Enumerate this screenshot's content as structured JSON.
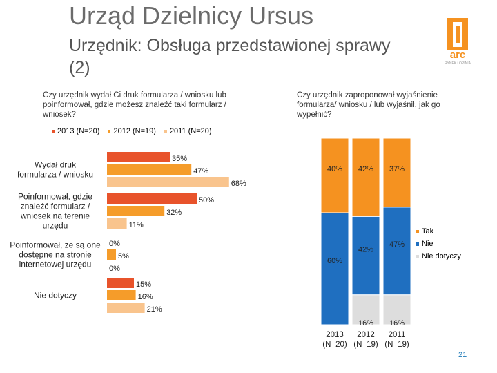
{
  "header": {
    "title": "Urząd Dzielnicy Ursus",
    "subtitle": "Urzędnik: Obsługa przedstawionej sprawy (2)",
    "logo_text": "arc",
    "logo_subtext": "RYNEK i OPINIA"
  },
  "page_number": "21",
  "colors": {
    "y2013": "#e8532b",
    "y2012": "#f59c2a",
    "y2011": "#f9c48d",
    "tak": "#f59220",
    "nie": "#1f6fc0",
    "nie_dotyczy": "#dddddd"
  },
  "chart_data": [
    {
      "type": "bar",
      "orientation": "horizontal",
      "title": "Czy urzędnik wydał Ci druk formularza / wniosku lub poinformował, gdzie możesz znaleźć taki formularz / wniosek?",
      "legend": [
        "2013 (N=20)",
        "2012 (N=19)",
        "2011 (N=20)"
      ],
      "legend_position": "top",
      "categories": [
        "Wydał druk formularza / wniosku",
        "Poinformował, gdzie znaleźć formularz / wniosek na terenie urzędu",
        "Poinformował, że są one dostępne na stronie internetowej urzędu",
        "Nie dotyczy"
      ],
      "series": [
        {
          "name": "2013 (N=20)",
          "values": [
            35,
            50,
            0,
            15
          ]
        },
        {
          "name": "2012 (N=19)",
          "values": [
            47,
            32,
            5,
            16
          ]
        },
        {
          "name": "2011 (N=20)",
          "values": [
            68,
            11,
            0,
            21
          ]
        }
      ],
      "unit": "%"
    },
    {
      "type": "bar",
      "stacked": true,
      "title": "Czy urzędnik zaproponował wyjaśnienie formularza/ wniosku / lub wyjaśnił, jak go wypełnić?",
      "categories": [
        "2013 (N=20)",
        "2012 (N=19)",
        "2011 (N=19)"
      ],
      "category_lines": [
        [
          "2013",
          "(N=20)"
        ],
        [
          "2012",
          "(N=19)"
        ],
        [
          "2011",
          "(N=19)"
        ]
      ],
      "legend": [
        "Tak",
        "Nie",
        "Nie dotyczy"
      ],
      "legend_position": "right",
      "series": [
        {
          "name": "Tak",
          "values": [
            40,
            42,
            37
          ]
        },
        {
          "name": "Nie",
          "values": [
            60,
            42,
            47
          ]
        },
        {
          "name": "Nie dotyczy",
          "values": [
            0,
            16,
            16
          ]
        }
      ],
      "value_labels": [
        [
          "40%",
          "60%",
          ""
        ],
        [
          "42%",
          "42%",
          "16%"
        ],
        [
          "37%",
          "47%",
          "16%"
        ]
      ],
      "unit": "%"
    }
  ]
}
